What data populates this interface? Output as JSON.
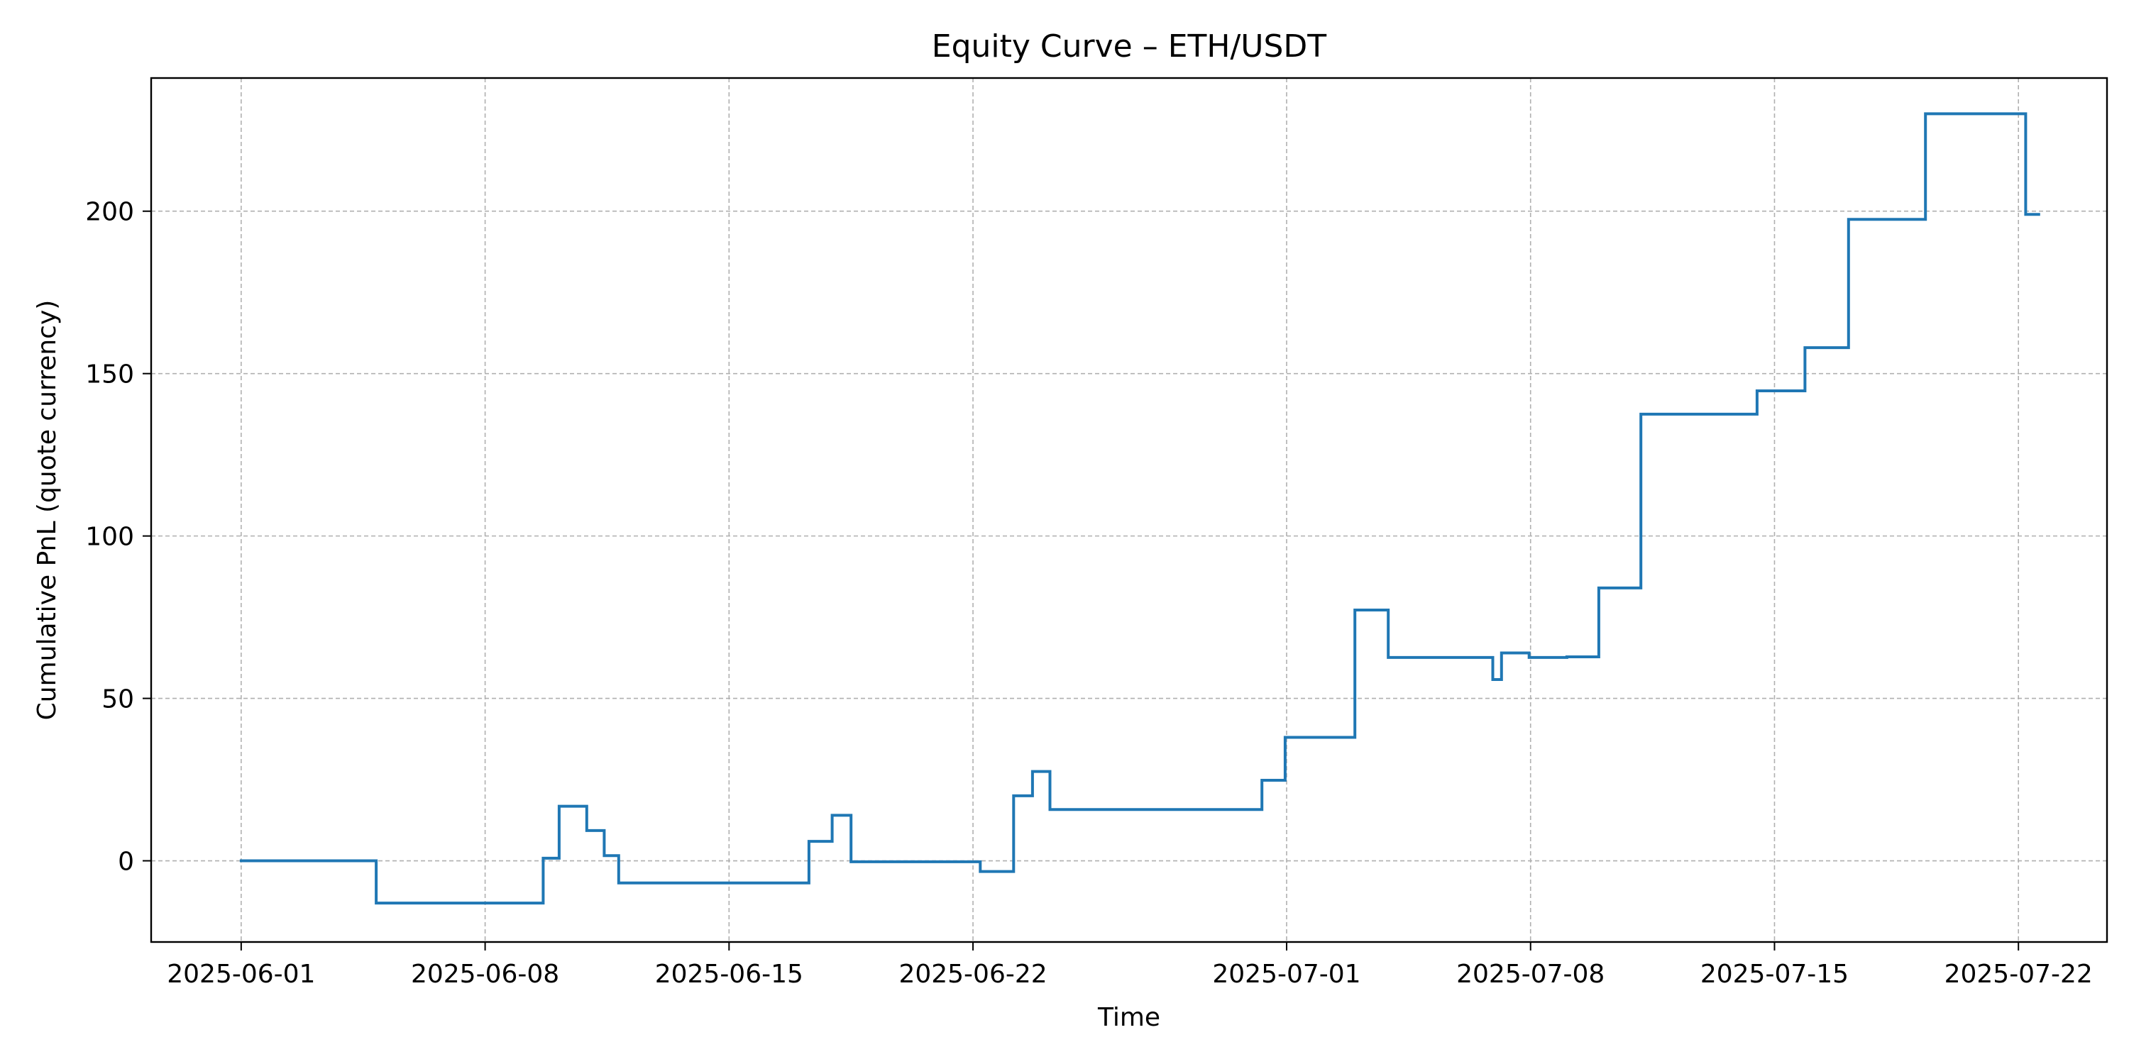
{
  "chart_data": {
    "type": "line",
    "title": "Equity Curve – ETH/USDT",
    "xlabel": "Time",
    "ylabel": "Cumulative PnL (quote currency)",
    "x_axis_type": "date",
    "xlim": [
      "2025-05-29T10:00",
      "2025-07-24T13:00"
    ],
    "ylim": [
      -25,
      241
    ],
    "grid": true,
    "line_style": "step",
    "x_ticks": [
      "2025-06-01",
      "2025-06-08",
      "2025-06-15",
      "2025-06-22",
      "2025-07-01",
      "2025-07-08",
      "2025-07-15",
      "2025-07-22"
    ],
    "y_ticks": [
      0,
      50,
      100,
      150,
      200
    ],
    "colors": {
      "series": "#1f77b4",
      "grid": "#b0b0b0",
      "frame": "#000000"
    },
    "series": [
      {
        "x": [
          "2025-06-01T00:00",
          "2025-06-04T21:00",
          "2025-06-09T16:00",
          "2025-06-10T03:00",
          "2025-06-10T22:00",
          "2025-06-11T10:00",
          "2025-06-11T20:00",
          "2025-06-17T07:00",
          "2025-06-17T23:00",
          "2025-06-18T12:00",
          "2025-06-22T05:00",
          "2025-06-23T04:00",
          "2025-06-23T17:00",
          "2025-06-24T05:00",
          "2025-06-30T07:00",
          "2025-06-30T23:00",
          "2025-07-02T23:00",
          "2025-07-03T22:00",
          "2025-07-06T22:00",
          "2025-07-07T04:00",
          "2025-07-07T23:00",
          "2025-07-09T01:00",
          "2025-07-09T23:00",
          "2025-07-11T04:00",
          "2025-07-14T12:00",
          "2025-07-15T21:00",
          "2025-07-17T03:00",
          "2025-07-19T08:00",
          "2025-07-22T05:00",
          "2025-07-22T14:00"
        ],
        "y": [
          0.0,
          -13.0,
          0.8,
          16.8,
          9.3,
          1.6,
          -6.8,
          6.0,
          14.0,
          -0.3,
          -3.3,
          20.0,
          27.5,
          15.8,
          24.8,
          38.0,
          77.2,
          62.6,
          55.8,
          64.0,
          62.6,
          62.8,
          84.0,
          137.5,
          144.7,
          158.0,
          197.5,
          230.0,
          199.0,
          199.0
        ]
      }
    ]
  }
}
